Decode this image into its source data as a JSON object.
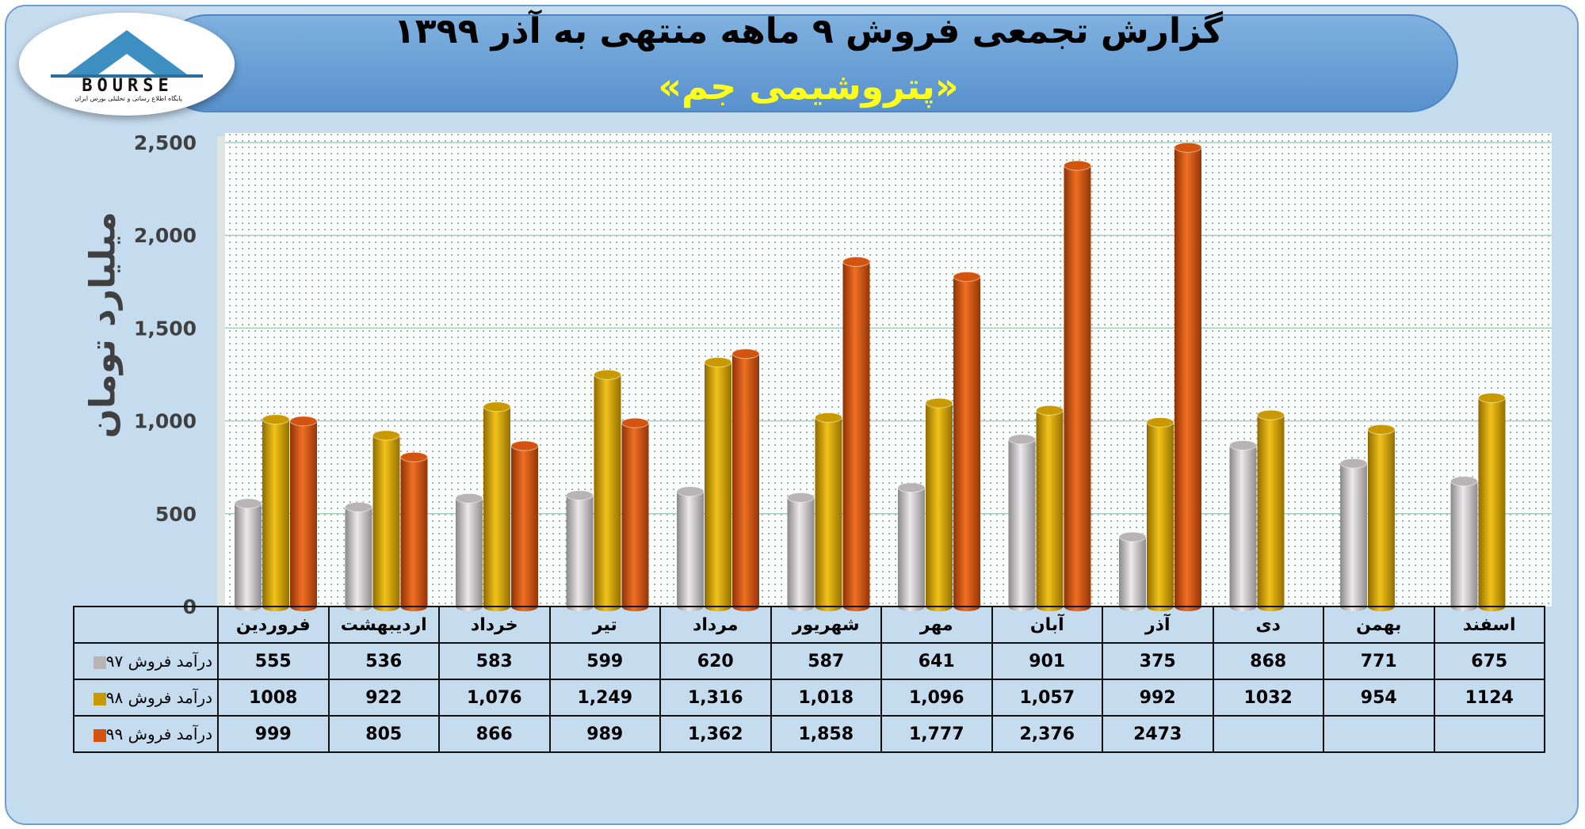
{
  "header": {
    "title": "گزارش تجمعی فروش ۹ ماهه منتهی به آذر ۱۳۹۹",
    "subtitle": "«پتروشیمی جم»"
  },
  "logo": {
    "text": "BOURSE",
    "caption": "پایگاه اطلاع رسانی و تحلیلی بورس ایران"
  },
  "chart_data": {
    "type": "bar",
    "ylabel": "میلیارد تومان",
    "ylim": [
      0,
      2500
    ],
    "yticks": [
      0,
      500,
      1000,
      1500,
      2000,
      2500
    ],
    "ytick_labels": [
      "0",
      "500",
      "1,000",
      "1,500",
      "2,000",
      "2,500"
    ],
    "grid": true,
    "legend": "table-left",
    "categories": [
      "فروردین",
      "اردیبهشت",
      "خرداد",
      "تیر",
      "مرداد",
      "شهریور",
      "مهر",
      "آبان",
      "آذر",
      "دی",
      "بهمن",
      "اسفند"
    ],
    "series": [
      {
        "name": "درآمد فروش ۹۷",
        "color": "#b8b4b6",
        "values": [
          555,
          536,
          583,
          599,
          620,
          587,
          641,
          901,
          375,
          868,
          771,
          675
        ],
        "labels": [
          "555",
          "536",
          "583",
          "599",
          "620",
          "587",
          "641",
          "901",
          "375",
          "868",
          "771",
          "675"
        ]
      },
      {
        "name": "درآمد فروش ۹۸",
        "color": "#c89a00",
        "values": [
          1008,
          922,
          1076,
          1249,
          1316,
          1018,
          1096,
          1057,
          992,
          1032,
          954,
          1124
        ],
        "labels": [
          "1008",
          "922",
          "1,076",
          "1,249",
          "1,316",
          "1,018",
          "1,096",
          "1,057",
          "992",
          "1032",
          "954",
          "1124"
        ]
      },
      {
        "name": "درآمد فروش ۹۹",
        "color": "#d2540e",
        "values": [
          999,
          805,
          866,
          989,
          1362,
          1858,
          1777,
          2376,
          2473,
          null,
          null,
          null
        ],
        "labels": [
          "999",
          "805",
          "866",
          "989",
          "1,362",
          "1,858",
          "1,777",
          "2,376",
          "2473",
          "",
          "",
          ""
        ]
      }
    ]
  }
}
